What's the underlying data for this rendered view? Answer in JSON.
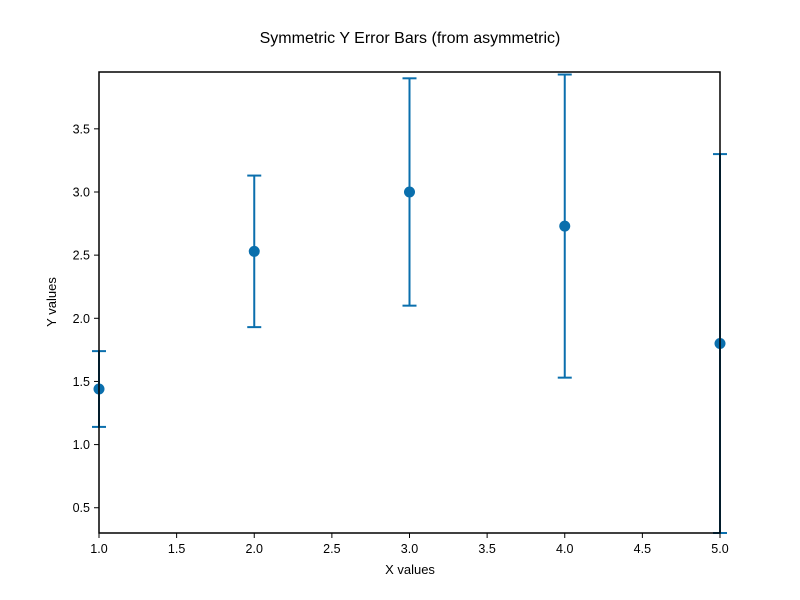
{
  "chart_data": {
    "type": "scatter",
    "title": "Symmetric Y Error Bars (from asymmetric)",
    "xlabel": "X values",
    "ylabel": "Y values",
    "xlim": [
      1.0,
      5.0
    ],
    "ylim": [
      0.3,
      3.95
    ],
    "xticks": [
      "1.0",
      "1.5",
      "2.0",
      "2.5",
      "3.0",
      "3.5",
      "4.0",
      "4.5",
      "5.0"
    ],
    "yticks": [
      "0.5",
      "1.0",
      "1.5",
      "2.0",
      "2.5",
      "3.0",
      "3.5"
    ],
    "grid": false,
    "color": "#0a6fad",
    "series": [
      {
        "points": [
          {
            "x": 1.0,
            "y": 1.44,
            "yerr": 0.3
          },
          {
            "x": 2.0,
            "y": 2.53,
            "yerr": 0.6
          },
          {
            "x": 3.0,
            "y": 3.0,
            "yerr": 0.9
          },
          {
            "x": 4.0,
            "y": 2.73,
            "yerr": 1.2
          },
          {
            "x": 5.0,
            "y": 1.8,
            "yerr": 1.5
          }
        ]
      }
    ]
  }
}
